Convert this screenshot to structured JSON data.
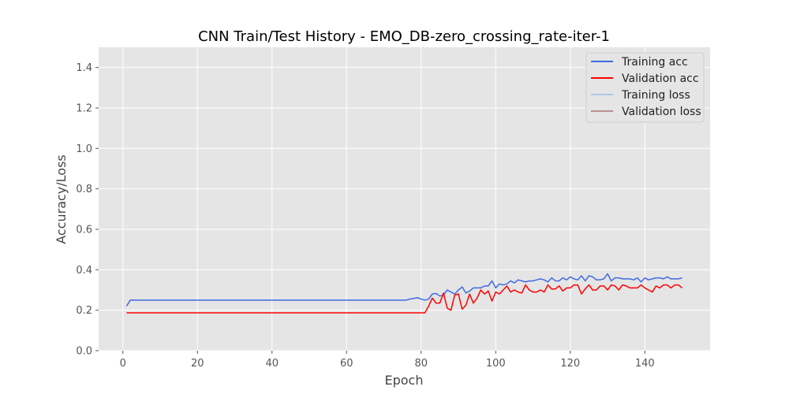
{
  "chart_data": {
    "type": "line",
    "title": "CNN Train/Test History -  EMO_DB-zero_crossing_rate-iter-1",
    "xlabel": "Epoch",
    "ylabel": "Accuracy/Loss",
    "xlim": [
      -6.5,
      157.5
    ],
    "ylim": [
      0,
      1.5
    ],
    "xticks": [
      0,
      20,
      40,
      60,
      80,
      100,
      120,
      140
    ],
    "yticks": [
      0.0,
      0.2,
      0.4,
      0.6,
      0.8,
      1.0,
      1.2,
      1.4
    ],
    "xtick_labels": [
      "0",
      "20",
      "40",
      "60",
      "80",
      "100",
      "120",
      "140"
    ],
    "ytick_labels": [
      "0.0",
      "0.2",
      "0.4",
      "0.6",
      "0.8",
      "1.0",
      "1.2",
      "1.4"
    ],
    "grid": true,
    "legend_position": "top-right",
    "x_start": 1,
    "series": [
      {
        "name": "Training acc",
        "color": "#4169e1",
        "values": [
          0.22,
          0.25,
          0.25,
          0.25,
          0.25,
          0.25,
          0.25,
          0.25,
          0.25,
          0.25,
          0.25,
          0.25,
          0.25,
          0.25,
          0.25,
          0.25,
          0.25,
          0.25,
          0.25,
          0.25,
          0.25,
          0.25,
          0.25,
          0.25,
          0.25,
          0.25,
          0.25,
          0.25,
          0.25,
          0.25,
          0.25,
          0.25,
          0.25,
          0.25,
          0.25,
          0.25,
          0.25,
          0.25,
          0.25,
          0.25,
          0.25,
          0.25,
          0.25,
          0.25,
          0.25,
          0.25,
          0.25,
          0.25,
          0.25,
          0.25,
          0.25,
          0.25,
          0.25,
          0.25,
          0.25,
          0.25,
          0.25,
          0.25,
          0.25,
          0.25,
          0.25,
          0.25,
          0.25,
          0.25,
          0.25,
          0.25,
          0.25,
          0.25,
          0.25,
          0.25,
          0.25,
          0.25,
          0.25,
          0.25,
          0.25,
          0.25,
          0.255,
          0.258,
          0.262,
          0.255,
          0.25,
          0.255,
          0.28,
          0.283,
          0.27,
          0.275,
          0.3,
          0.29,
          0.28,
          0.3,
          0.315,
          0.285,
          0.295,
          0.31,
          0.31,
          0.31,
          0.32,
          0.32,
          0.345,
          0.31,
          0.33,
          0.325,
          0.33,
          0.345,
          0.335,
          0.35,
          0.345,
          0.34,
          0.345,
          0.345,
          0.35,
          0.355,
          0.35,
          0.34,
          0.36,
          0.345,
          0.345,
          0.36,
          0.35,
          0.365,
          0.355,
          0.35,
          0.37,
          0.345,
          0.37,
          0.365,
          0.35,
          0.35,
          0.355,
          0.38,
          0.345,
          0.36,
          0.36,
          0.355,
          0.355,
          0.355,
          0.35,
          0.36,
          0.34,
          0.36,
          0.35,
          0.355,
          0.36,
          0.36,
          0.355,
          0.365,
          0.355,
          0.355,
          0.355,
          0.36
        ]
      },
      {
        "name": "Validation acc",
        "color": "#ff0000",
        "values": [
          0.187,
          0.187,
          0.187,
          0.187,
          0.187,
          0.187,
          0.187,
          0.187,
          0.187,
          0.187,
          0.187,
          0.187,
          0.187,
          0.187,
          0.187,
          0.187,
          0.187,
          0.187,
          0.187,
          0.187,
          0.187,
          0.187,
          0.187,
          0.187,
          0.187,
          0.187,
          0.187,
          0.187,
          0.187,
          0.187,
          0.187,
          0.187,
          0.187,
          0.187,
          0.187,
          0.187,
          0.187,
          0.187,
          0.187,
          0.187,
          0.187,
          0.187,
          0.187,
          0.187,
          0.187,
          0.187,
          0.187,
          0.187,
          0.187,
          0.187,
          0.187,
          0.187,
          0.187,
          0.187,
          0.187,
          0.187,
          0.187,
          0.187,
          0.187,
          0.187,
          0.187,
          0.187,
          0.187,
          0.187,
          0.187,
          0.187,
          0.187,
          0.187,
          0.187,
          0.187,
          0.187,
          0.187,
          0.187,
          0.187,
          0.187,
          0.187,
          0.187,
          0.187,
          0.187,
          0.187,
          0.187,
          0.22,
          0.26,
          0.235,
          0.235,
          0.285,
          0.21,
          0.2,
          0.275,
          0.28,
          0.205,
          0.225,
          0.28,
          0.235,
          0.26,
          0.3,
          0.28,
          0.295,
          0.245,
          0.29,
          0.28,
          0.3,
          0.32,
          0.29,
          0.3,
          0.29,
          0.285,
          0.325,
          0.3,
          0.29,
          0.29,
          0.3,
          0.29,
          0.325,
          0.305,
          0.305,
          0.32,
          0.295,
          0.31,
          0.31,
          0.325,
          0.325,
          0.28,
          0.305,
          0.325,
          0.3,
          0.3,
          0.32,
          0.32,
          0.3,
          0.325,
          0.32,
          0.3,
          0.325,
          0.32,
          0.31,
          0.31,
          0.31,
          0.325,
          0.31,
          0.3,
          0.29,
          0.32,
          0.31,
          0.325,
          0.325,
          0.31,
          0.325,
          0.325,
          0.31
        ]
      },
      {
        "name": "Training loss",
        "color": "#aec7e8",
        "values": []
      },
      {
        "name": "Validation loss",
        "color": "#bc8f8f",
        "values": []
      }
    ]
  }
}
